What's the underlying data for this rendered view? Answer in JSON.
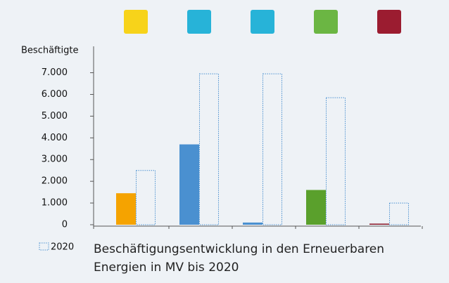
{
  "chart_data": {
    "type": "bar",
    "y_axis_label": "Beschäftigte",
    "caption": "Beschäftigungsentwicklung in den Erneuerbaren Energien in MV bis 2020",
    "categories": [
      null,
      null,
      null,
      null,
      null
    ],
    "series": [
      {
        "colors": [
          "#f5a300",
          "#4a90d0",
          "#4a90d0",
          "#5aa02c",
          "#8b1a2b"
        ],
        "values": [
          1450,
          3700,
          100,
          1600,
          50
        ]
      },
      {
        "name": "2020",
        "color": "#4a90d0",
        "style": "dotted",
        "values": [
          2500,
          6950,
          6950,
          5850,
          1000
        ]
      }
    ],
    "ylim": [
      0,
      8150
    ],
    "yticks": [
      0,
      {
        "value": 1000,
        "label": "1.000"
      },
      {
        "value": 2000,
        "label": "2.000"
      },
      {
        "value": 3000,
        "label": "3.000"
      },
      {
        "value": 4000,
        "label": "4.000"
      },
      {
        "value": 5000,
        "label": "5.000"
      },
      {
        "value": 6000,
        "label": "6.000"
      },
      {
        "value": 7000,
        "label": "7.000"
      }
    ]
  }
}
